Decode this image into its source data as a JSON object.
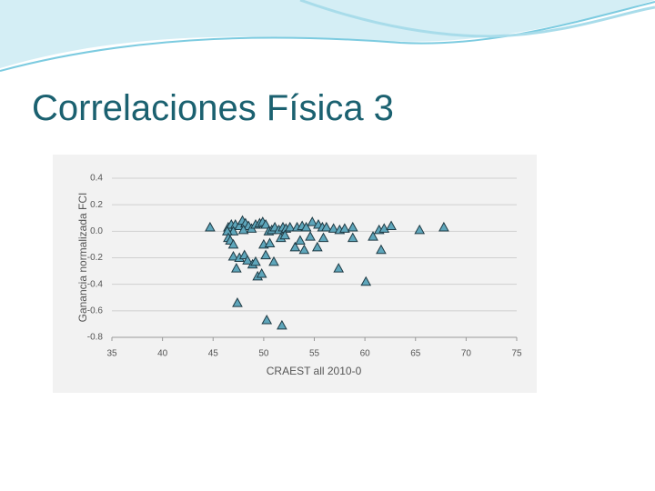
{
  "title": "Correlaciones Física 3",
  "chart_data": {
    "type": "scatter",
    "x_label": "CRAEST all 2010-0",
    "y_label": "Ganancia normalizada FCI",
    "color": "#5ea6bb",
    "grid": true,
    "xlim": [
      35,
      75
    ],
    "xticks": [
      35,
      40,
      45,
      50,
      55,
      60,
      65,
      70,
      75
    ],
    "ylim": [
      -0.8,
      0.4
    ],
    "yticks": [
      0.4,
      0.2,
      {
        "value": 0,
        "label": "0.0"
      },
      -0.2,
      -0.4,
      -0.6,
      -0.8
    ],
    "x": [
      44.7,
      46.5,
      46.8,
      47.2,
      47.6,
      47.9,
      48.2,
      48.5,
      48.0,
      47.0,
      46.4,
      46.5,
      46.7,
      47.0,
      48.8,
      49.2,
      49.6,
      49.9,
      50.2,
      50.5,
      50.8,
      51.1,
      51.5,
      51.9,
      52.2,
      52.6,
      53.3,
      53.8,
      54.2,
      54.8,
      55.4,
      55.8,
      56.2,
      56.9,
      57.5,
      58.0,
      58.8,
      58.8,
      60.8,
      61.4,
      61.9,
      62.6,
      65.4,
      67.8,
      47.0,
      47.3,
      47.6,
      48.1,
      48.4,
      48.9,
      49.2,
      49.4,
      49.8,
      50.0,
      50.2,
      50.6,
      51.0,
      51.7,
      52.1,
      53.1,
      53.6,
      54.0,
      54.6,
      55.3,
      55.9,
      57.4,
      60.1,
      61.6,
      47.4,
      50.3,
      51.8
    ],
    "y": [
      0.03,
      0.03,
      0.05,
      0.05,
      0.04,
      0.08,
      0.06,
      0.04,
      0.01,
      0.0,
      0.0,
      -0.05,
      -0.07,
      -0.1,
      0.02,
      0.05,
      0.06,
      0.07,
      0.05,
      0.0,
      0.01,
      0.03,
      0.01,
      0.03,
      0.02,
      0.03,
      0.03,
      0.04,
      0.03,
      0.07,
      0.05,
      0.03,
      0.03,
      0.02,
      0.01,
      0.02,
      0.03,
      -0.05,
      -0.04,
      0.01,
      0.02,
      0.04,
      0.01,
      0.03,
      -0.19,
      -0.28,
      -0.2,
      -0.18,
      -0.22,
      -0.25,
      -0.23,
      -0.34,
      -0.32,
      -0.1,
      -0.18,
      -0.09,
      -0.23,
      -0.05,
      -0.03,
      -0.12,
      -0.07,
      -0.14,
      -0.04,
      -0.12,
      -0.05,
      -0.28,
      -0.38,
      -0.14,
      -0.54,
      -0.67,
      -0.71
    ]
  }
}
